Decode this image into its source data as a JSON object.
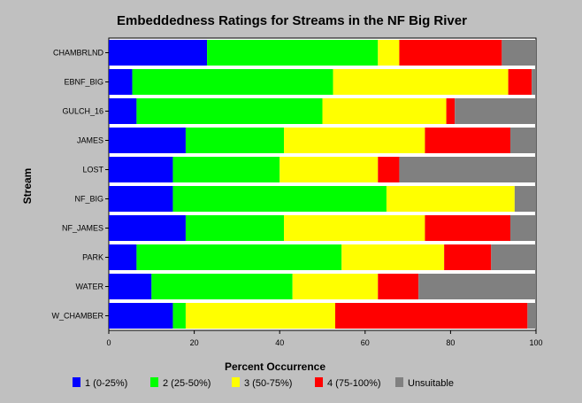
{
  "chart_data": {
    "type": "bar",
    "orientation": "horizontal",
    "stacked": true,
    "title": "Embeddedness Ratings for Streams in the NF Big River",
    "xlabel": "Percent Occurrence",
    "ylabel": "Stream",
    "xlim": [
      0,
      100
    ],
    "xticks": [
      "0",
      "20",
      "40",
      "60",
      "80",
      "100"
    ],
    "grid": false,
    "legend_position": "bottom",
    "categories": [
      "CHAMBRLND",
      "EBNF_BIG",
      "GULCH_16",
      "JAMES",
      "LOST",
      "NF_BIG",
      "NF_JAMES",
      "PARK",
      "WATER",
      "W_CHAMBER"
    ],
    "series": [
      {
        "name": "1   (0-25%)",
        "color": "#0000ff",
        "values": [
          23,
          5.5,
          6.5,
          18,
          15,
          15,
          18,
          6.5,
          10,
          15
        ]
      },
      {
        "name": "2  (25-50%)",
        "color": "#00ff00",
        "values": [
          40,
          47,
          43.5,
          23,
          25,
          50,
          23,
          48,
          33,
          3
        ]
      },
      {
        "name": "3  (50-75%)",
        "color": "#ffff00",
        "values": [
          5,
          41,
          29,
          33,
          23,
          30,
          33,
          24,
          20,
          35
        ]
      },
      {
        "name": "4 (75-100%)",
        "color": "#ff0000",
        "values": [
          24,
          5.5,
          2,
          20,
          5,
          0,
          20,
          11,
          9.5,
          45
        ]
      },
      {
        "name": "Unsuitable",
        "color": "#808080",
        "values": [
          8,
          1,
          19,
          6,
          32,
          5,
          6,
          10.5,
          27.5,
          2
        ]
      }
    ]
  }
}
